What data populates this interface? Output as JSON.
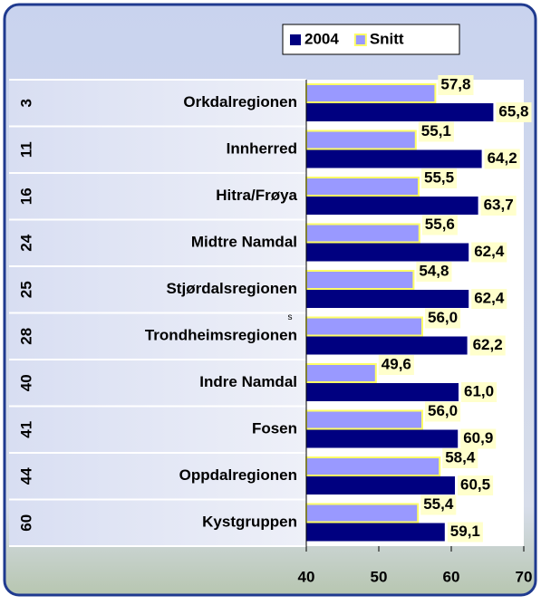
{
  "chart_data": {
    "type": "barh",
    "categories": [
      "Orkdalregionen",
      "Innherred",
      "Hitra/Frøya",
      "Midtre Namdal",
      "Stjørdalsregionen",
      "Trondheimsregionen",
      "Indre Namdal",
      "Fosen",
      "Oppdalregionen",
      "Kystgruppen"
    ],
    "row_numbers": [
      3,
      11,
      16,
      24,
      25,
      28,
      40,
      41,
      44,
      60
    ],
    "annotation": "s",
    "series": [
      {
        "name": "Snitt",
        "color": "#9999ff",
        "edgecolor": "#ffff66",
        "values": [
          57.8,
          55.1,
          55.5,
          55.6,
          54.8,
          56.0,
          49.6,
          56.0,
          58.4,
          55.4
        ],
        "value_labels": [
          "57,8",
          "55,1",
          "55,5",
          "55,6",
          "54,8",
          "56,0",
          "49,6",
          "56,0",
          "58,4",
          "55,4"
        ]
      },
      {
        "name": "2004",
        "color": "#000080",
        "values": [
          65.8,
          64.2,
          63.7,
          62.4,
          62.4,
          62.2,
          61.0,
          60.9,
          60.5,
          59.1
        ],
        "value_labels": [
          "65,8",
          "64,2",
          "63,7",
          "62,4",
          "62,4",
          "62,2",
          "61,0",
          "60,9",
          "60,5",
          "59,1"
        ]
      }
    ],
    "legend_order": [
      1,
      0
    ],
    "xlim": [
      40,
      70
    ],
    "xticks": [
      40,
      50,
      60,
      70
    ],
    "grid": false,
    "legend": "top"
  }
}
